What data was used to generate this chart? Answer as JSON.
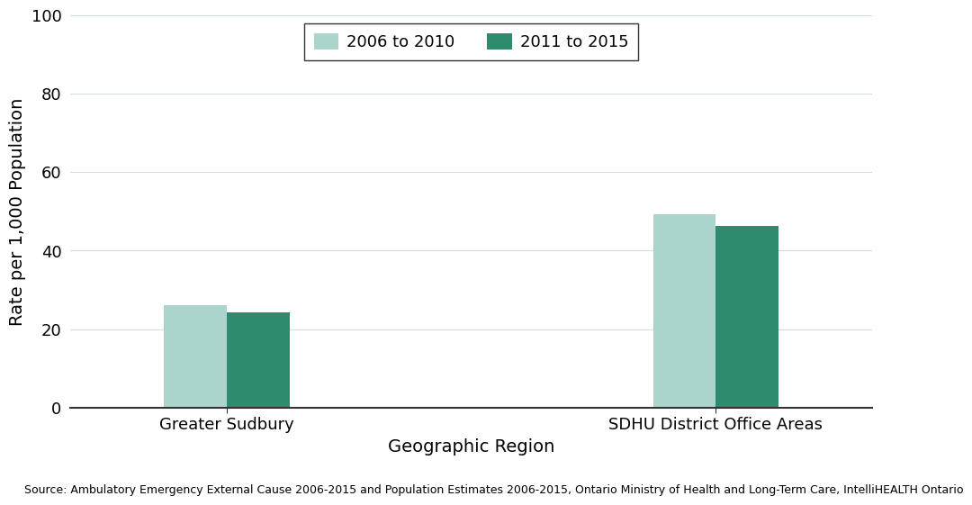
{
  "categories": [
    "Greater Sudbury",
    "SDHU District Office Areas"
  ],
  "series": [
    {
      "label": "2006 to 2010",
      "values": [
        26.0,
        49.3
      ],
      "color": "#aad4cc"
    },
    {
      "label": "2011 to 2015",
      "values": [
        24.3,
        46.3
      ],
      "color": "#2e8b6e"
    }
  ],
  "ylabel": "Rate per 1,000 Population",
  "xlabel": "Geographic Region",
  "ylim": [
    0,
    100
  ],
  "yticks": [
    0,
    20,
    40,
    60,
    80,
    100
  ],
  "bar_width": 0.32,
  "group_positions": [
    1.0,
    3.5
  ],
  "xlim": [
    0.2,
    4.3
  ],
  "background_color": "#ffffff",
  "source_text": "Source: Ambulatory Emergency External Cause 2006-2015 and Population Estimates 2006-2015, Ontario Ministry of Health and Long-Term Care, IntelliHEALTH Ontario",
  "legend_edge_color": "#333333",
  "axis_fontsize": 14,
  "tick_fontsize": 13,
  "legend_fontsize": 13,
  "source_fontsize": 9
}
